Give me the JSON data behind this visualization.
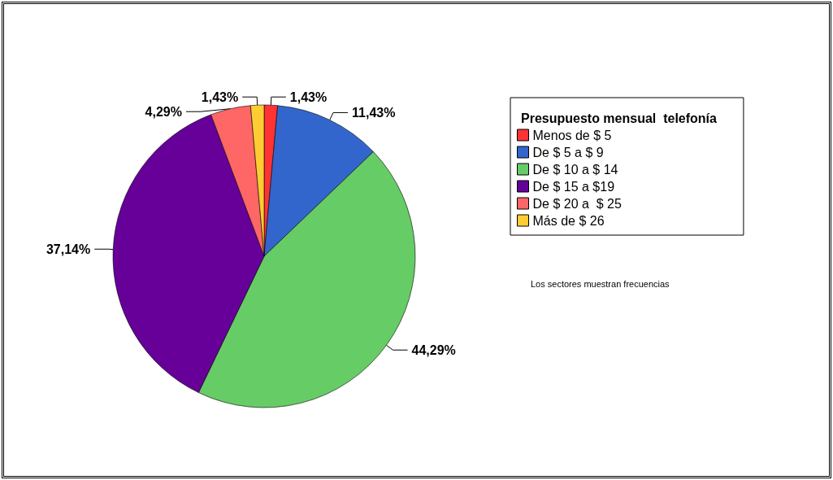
{
  "chart_data": {
    "type": "pie",
    "legend_title": "Presupuesto mensual  telefonía",
    "categories": [
      "Menos de $ 5",
      "De $ 5 a $ 9",
      "De $ 10 a $ 14",
      "De $ 15 a $19",
      "De $ 20 a  $ 25",
      "Más de $ 26"
    ],
    "values": [
      1.43,
      11.43,
      44.29,
      37.14,
      4.29,
      1.43
    ],
    "value_labels": [
      "1,43%",
      "11,43%",
      "44,29%",
      "37,14%",
      "4,29%",
      "1,43%"
    ],
    "colors": [
      "#ff3333",
      "#3366cc",
      "#66cc66",
      "#660099",
      "#ff6666",
      "#ffcc33"
    ],
    "legend": "right",
    "annotations": [
      "Los sectores muestran frecuencias"
    ]
  }
}
